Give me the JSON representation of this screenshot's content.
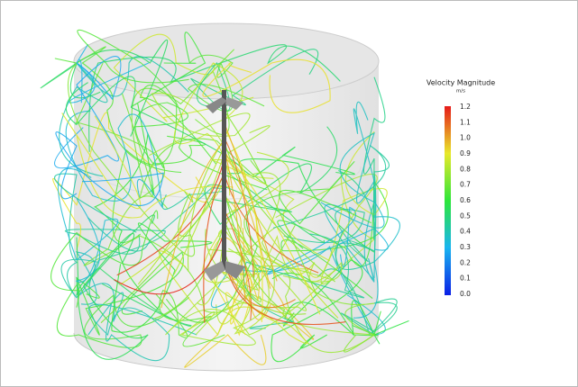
{
  "legend": {
    "title": "Velocity Magnitude",
    "unit": "m/s",
    "ticks": [
      "1.2",
      "1.1",
      "1.0",
      "0.9",
      "0.8",
      "0.7",
      "0.6",
      "0.5",
      "0.4",
      "0.3",
      "0.2",
      "0.1",
      "0.0"
    ]
  }
}
